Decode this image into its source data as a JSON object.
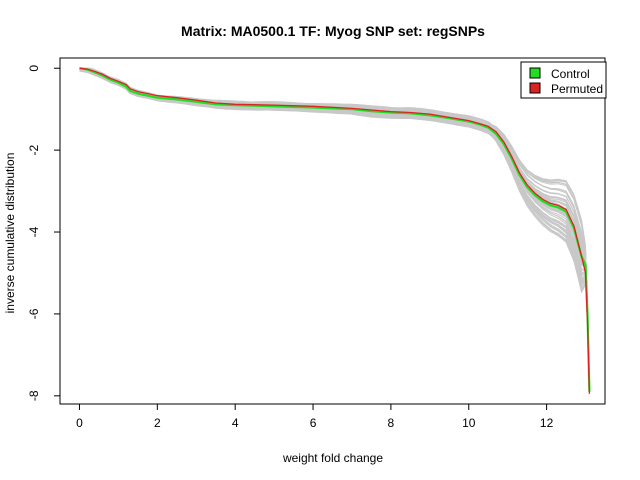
{
  "chart_data": {
    "type": "line",
    "title": "Matrix: MA0500.1 TF: Myog SNP set: regSNPs",
    "xlabel": "weight fold change",
    "ylabel": "inverse cumulative distribution",
    "xlim": [
      -0.5,
      13.5
    ],
    "ylim": [
      -8.2,
      0.25
    ],
    "xticks": [
      0,
      2,
      4,
      6,
      8,
      10,
      12
    ],
    "yticks": [
      0,
      -2,
      -4,
      -6,
      -8
    ],
    "grid": false,
    "legend": {
      "placement": "top-right",
      "entries": [
        {
          "label": "Control",
          "color": "#22dd22"
        },
        {
          "label": "Permuted",
          "color": "#dd2222"
        }
      ]
    },
    "permutation_band_color": "#c8c8c8",
    "series": [
      {
        "name": "Control",
        "color": "#22dd22",
        "x": [
          0.0,
          0.2,
          0.4,
          0.6,
          0.8,
          1.0,
          1.2,
          1.3,
          1.5,
          1.8,
          2.0,
          2.5,
          3.0,
          3.5,
          4.0,
          5.0,
          6.0,
          7.0,
          7.5,
          8.0,
          8.5,
          9.0,
          9.5,
          10.0,
          10.3,
          10.5,
          10.7,
          10.9,
          11.1,
          11.3,
          11.5,
          11.7,
          11.9,
          12.1,
          12.3,
          12.5,
          12.7,
          12.9,
          13.0,
          13.05,
          13.1
        ],
        "y": [
          0.0,
          -0.03,
          -0.1,
          -0.18,
          -0.28,
          -0.35,
          -0.45,
          -0.55,
          -0.62,
          -0.68,
          -0.72,
          -0.76,
          -0.82,
          -0.88,
          -0.9,
          -0.93,
          -0.96,
          -1.0,
          -1.05,
          -1.08,
          -1.1,
          -1.15,
          -1.22,
          -1.3,
          -1.38,
          -1.45,
          -1.6,
          -1.85,
          -2.2,
          -2.6,
          -2.9,
          -3.1,
          -3.25,
          -3.35,
          -3.4,
          -3.5,
          -3.9,
          -4.6,
          -4.8,
          -6.0,
          -7.9
        ]
      },
      {
        "name": "Permuted",
        "color": "#dd2222",
        "x": [
          0.0,
          0.2,
          0.4,
          0.6,
          0.8,
          1.0,
          1.2,
          1.3,
          1.5,
          1.8,
          2.0,
          2.5,
          3.0,
          3.5,
          4.0,
          5.0,
          6.0,
          7.0,
          7.5,
          8.0,
          8.5,
          9.0,
          9.5,
          10.0,
          10.3,
          10.5,
          10.7,
          10.9,
          11.1,
          11.3,
          11.5,
          11.7,
          11.9,
          12.1,
          12.3,
          12.5,
          12.7,
          12.9,
          13.0,
          13.05,
          13.1
        ],
        "y": [
          0.0,
          -0.02,
          -0.08,
          -0.15,
          -0.25,
          -0.32,
          -0.4,
          -0.5,
          -0.57,
          -0.63,
          -0.67,
          -0.72,
          -0.78,
          -0.85,
          -0.88,
          -0.9,
          -0.93,
          -0.98,
          -1.02,
          -1.06,
          -1.08,
          -1.12,
          -1.2,
          -1.28,
          -1.36,
          -1.42,
          -1.55,
          -1.8,
          -2.15,
          -2.55,
          -2.85,
          -3.05,
          -3.2,
          -3.3,
          -3.35,
          -3.45,
          -3.85,
          -4.6,
          -5.0,
          -6.2,
          -7.95
        ]
      }
    ]
  }
}
